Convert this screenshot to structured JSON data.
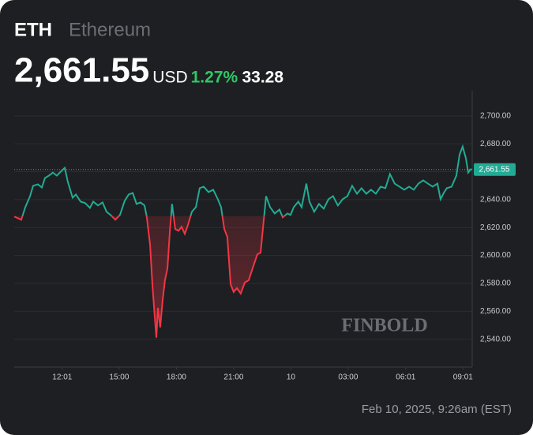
{
  "chart_data": {
    "type": "line",
    "symbol": "ETH",
    "name": "Ethereum",
    "last_price": {
      "value": 2661.55,
      "label": "2,661.55"
    },
    "currency": "USD",
    "change_pct": {
      "value": 1.27,
      "label": "1.27%"
    },
    "change": 33.28,
    "timestamp": "Feb 10, 2025, 9:26am (EST)",
    "watermark": "FINBOLD",
    "colors": {
      "up": "#22ab94",
      "down": "#f23645"
    },
    "x": [
      9.5,
      9.67,
      9.87,
      10.08,
      10.33,
      10.49,
      10.74,
      10.95,
      11.11,
      11.32,
      11.53,
      11.73,
      11.98,
      12.15,
      12.31,
      12.56,
      12.73,
      12.98,
      13.22,
      13.47,
      13.64,
      13.89,
      14.13,
      14.34,
      14.55,
      14.8,
      15.04,
      15.29,
      15.5,
      15.71,
      15.91,
      16.12,
      16.33,
      16.45,
      16.62,
      16.74,
      16.86,
      16.95,
      17.03,
      17.15,
      17.28,
      17.4,
      17.53,
      17.65,
      17.77,
      17.94,
      18.11,
      18.27,
      18.44,
      18.6,
      18.81,
      19.02,
      19.22,
      19.43,
      19.68,
      19.93,
      20.17,
      20.34,
      20.51,
      20.67,
      20.84,
      21.0,
      21.17,
      21.37,
      21.58,
      21.79,
      21.99,
      22.24,
      22.41,
      22.57,
      22.7,
      22.91,
      23.15,
      23.4,
      23.57,
      23.82,
      23.98,
      24.15,
      24.39,
      24.56,
      24.81,
      24.97,
      25.22,
      25.47,
      25.72,
      25.97,
      26.21,
      26.46,
      26.71,
      26.96,
      27.21,
      27.46,
      27.7,
      27.95,
      28.2,
      28.45,
      28.7,
      28.95,
      29.19,
      29.44,
      29.69,
      29.94,
      30.19,
      30.44,
      30.68,
      30.93,
      31.18,
      31.43,
      31.68,
      31.84,
      32.01,
      32.17,
      32.42,
      32.67,
      32.84,
      33.0,
      33.17,
      33.29,
      33.41,
      33.5
    ],
    "values": [
      2627.9,
      2626.8,
      2625.6,
      2634.6,
      2642.5,
      2649.9,
      2651.0,
      2648.7,
      2655.5,
      2657.2,
      2659.4,
      2657.2,
      2660.6,
      2662.8,
      2652.7,
      2641.4,
      2643.7,
      2638.6,
      2637.5,
      2634.1,
      2638.6,
      2635.8,
      2638.0,
      2631.3,
      2629.0,
      2625.6,
      2629.0,
      2639.2,
      2643.7,
      2644.8,
      2636.9,
      2638.0,
      2635.8,
      2627.3,
      2607.6,
      2579.4,
      2556.9,
      2541.1,
      2562.5,
      2548.5,
      2568.2,
      2582.3,
      2590.7,
      2616.1,
      2636.9,
      2618.9,
      2617.7,
      2620.6,
      2615.5,
      2621.7,
      2631.3,
      2634.6,
      2648.2,
      2649.3,
      2645.4,
      2647.1,
      2640.3,
      2634.6,
      2618.9,
      2613.2,
      2579.4,
      2573.8,
      2576.6,
      2572.7,
      2580.6,
      2582.3,
      2590.7,
      2600.8,
      2602.0,
      2624.5,
      2642.5,
      2634.6,
      2630.1,
      2632.9,
      2627.3,
      2630.1,
      2629.0,
      2634.6,
      2638.6,
      2634.6,
      2651.5,
      2638.6,
      2631.3,
      2636.9,
      2633.5,
      2640.3,
      2642.5,
      2635.8,
      2640.3,
      2642.5,
      2649.9,
      2644.2,
      2648.2,
      2644.2,
      2647.1,
      2644.2,
      2649.3,
      2648.2,
      2658.3,
      2651.5,
      2649.3,
      2647.1,
      2649.3,
      2647.1,
      2651.5,
      2653.8,
      2651.5,
      2649.3,
      2651.5,
      2640.3,
      2644.8,
      2648.2,
      2649.3,
      2657.2,
      2672.4,
      2678.0,
      2669.6,
      2659.4,
      2661.7,
      2661.55
    ],
    "xlim": [
      9.5,
      33.5
    ],
    "xticks": [
      {
        "value": 12.017,
        "label": "12:01"
      },
      {
        "value": 15,
        "label": "15:00"
      },
      {
        "value": 18,
        "label": "18:00"
      },
      {
        "value": 21,
        "label": "21:00"
      },
      {
        "value": 24,
        "label": "10"
      },
      {
        "value": 27,
        "label": "03:00"
      },
      {
        "value": 30.017,
        "label": "06:01"
      },
      {
        "value": 33.017,
        "label": "09:01"
      }
    ],
    "ylim": [
      2520,
      2718
    ],
    "yticks": [
      {
        "value": 2540,
        "label": "2,540.00"
      },
      {
        "value": 2560,
        "label": "2,560.00"
      },
      {
        "value": 2580,
        "label": "2,580.00"
      },
      {
        "value": 2600,
        "label": "2,600.00"
      },
      {
        "value": 2620,
        "label": "2,620.00"
      },
      {
        "value": 2640,
        "label": "2,640.00"
      },
      {
        "value": 2660,
        "label": "2,660.00"
      },
      {
        "value": 2680,
        "label": "2,680.00"
      },
      {
        "value": 2700,
        "label": "2,700.00"
      }
    ],
    "grid": true
  }
}
